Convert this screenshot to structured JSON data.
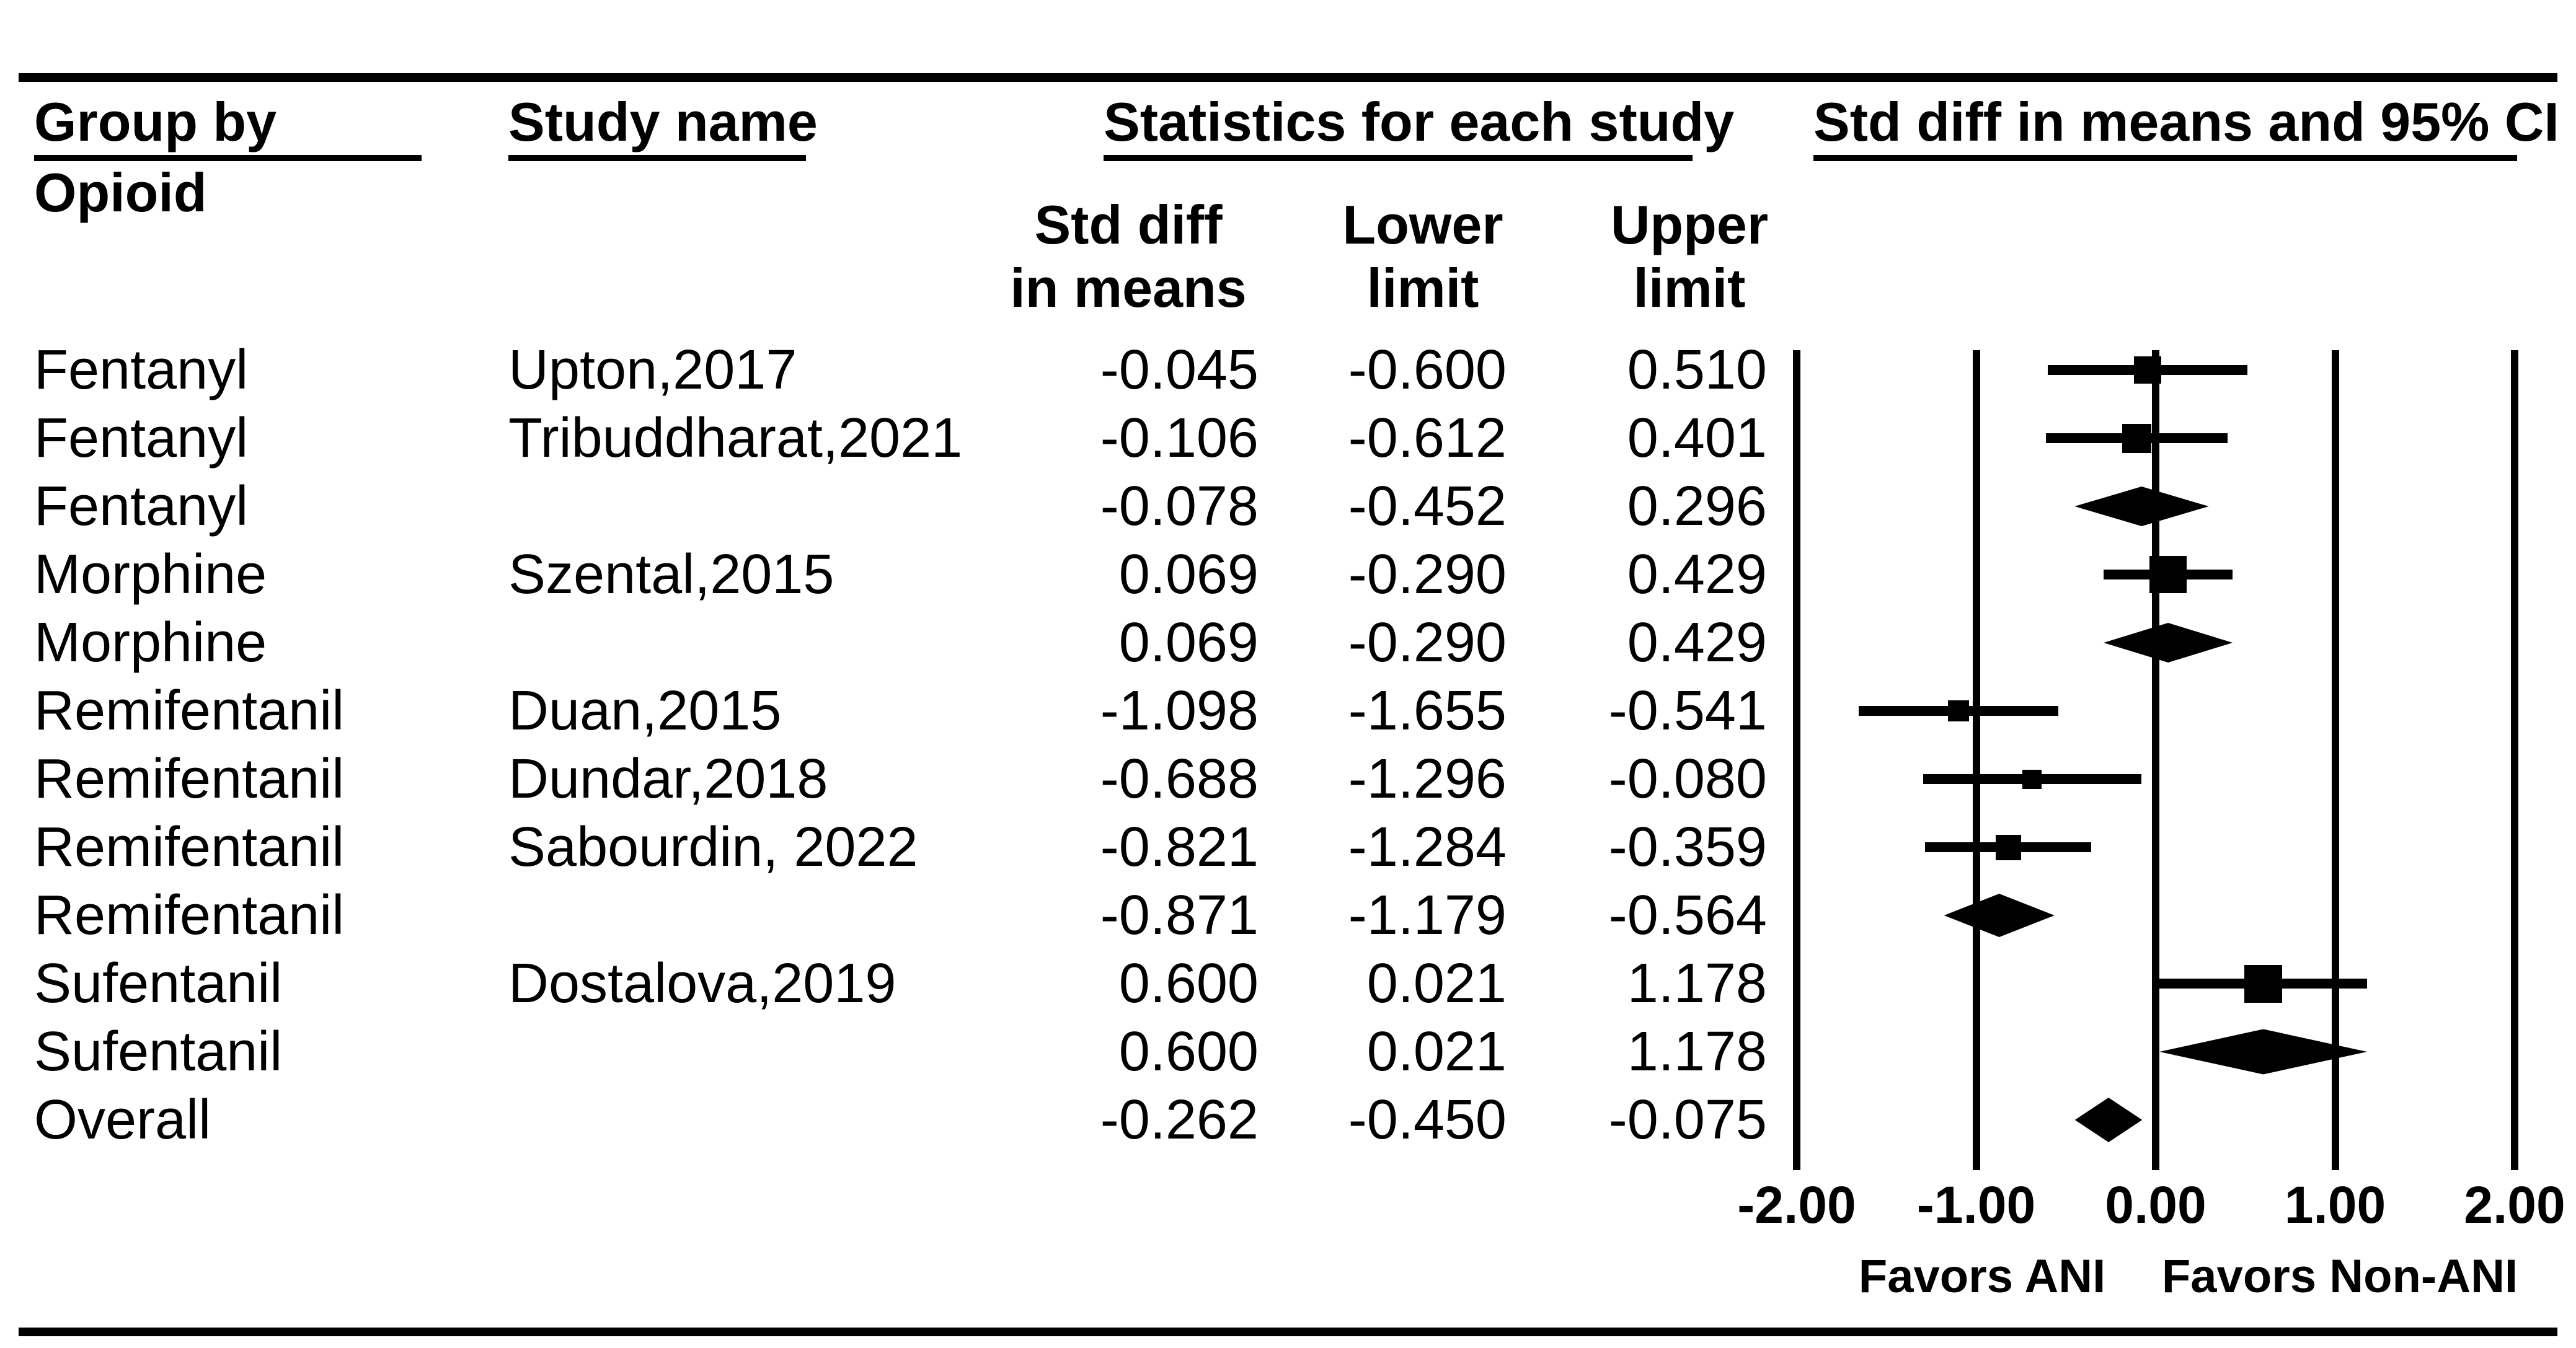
{
  "header": {
    "group_by_label": "Group by",
    "group_by_sub": "Opioid",
    "study_name_label": "Study name",
    "stats_label": "Statistics for each study",
    "plot_label": "Std diff in means and 95% CI",
    "col_std": {
      "line1": "Std diff",
      "line2": "in means"
    },
    "col_lower": {
      "line1": "Lower",
      "line2": "limit"
    },
    "col_upper": {
      "line1": "Upper",
      "line2": "limit"
    }
  },
  "chart_data": {
    "type": "forest",
    "title": "Std diff in means and 95% CI",
    "x_axis": {
      "range": [
        -2,
        2
      ],
      "tick_values": [
        -2,
        -1,
        0,
        1,
        2
      ],
      "tick_labels": [
        "-2.00",
        "-1.00",
        "0.00",
        "1.00",
        "2.00"
      ],
      "gridlines": true
    },
    "annotations": {
      "favors_left": "Favors ANI",
      "favors_right": "Favors Non-ANI"
    },
    "rows": [
      {
        "group": "Fentanyl",
        "study": "Upton,2017",
        "std_diff": -0.045,
        "lower": -0.6,
        "upper": 0.51,
        "std_txt": "-0.045",
        "lo_txt": "-0.600",
        "up_txt": "0.510",
        "marker": "square",
        "size": 44
      },
      {
        "group": "Fentanyl",
        "study": "Tribuddharat,2021",
        "std_diff": -0.106,
        "lower": -0.612,
        "upper": 0.401,
        "std_txt": "-0.106",
        "lo_txt": "-0.612",
        "up_txt": "0.401",
        "marker": "square",
        "size": 47
      },
      {
        "group": "Fentanyl",
        "study": "",
        "std_diff": -0.078,
        "lower": -0.452,
        "upper": 0.296,
        "std_txt": "-0.078",
        "lo_txt": "-0.452",
        "up_txt": "0.296",
        "marker": "diamond",
        "size": 64
      },
      {
        "group": "Morphine",
        "study": "Szental,2015",
        "std_diff": 0.069,
        "lower": -0.29,
        "upper": 0.429,
        "std_txt": "0.069",
        "lo_txt": "-0.290",
        "up_txt": "0.429",
        "marker": "square",
        "size": 60
      },
      {
        "group": "Morphine",
        "study": "",
        "std_diff": 0.069,
        "lower": -0.29,
        "upper": 0.429,
        "std_txt": "0.069",
        "lo_txt": "-0.290",
        "up_txt": "0.429",
        "marker": "diamond",
        "size": 64
      },
      {
        "group": "Remifentanil",
        "study": "Duan,2015",
        "std_diff": -1.098,
        "lower": -1.655,
        "upper": -0.541,
        "std_txt": "-1.098",
        "lo_txt": "-1.655",
        "up_txt": "-0.541",
        "marker": "square",
        "size": 34
      },
      {
        "group": "Remifentanil",
        "study": "Dundar,2018",
        "std_diff": -0.688,
        "lower": -1.296,
        "upper": -0.08,
        "std_txt": "-0.688",
        "lo_txt": "-1.296",
        "up_txt": "-0.080",
        "marker": "square",
        "size": 31
      },
      {
        "group": "Remifentanil",
        "study": "Sabourdin, 2022",
        "std_diff": -0.821,
        "lower": -1.284,
        "upper": -0.359,
        "std_txt": "-0.821",
        "lo_txt": "-1.284",
        "up_txt": "-0.359",
        "marker": "square",
        "size": 41
      },
      {
        "group": "Remifentanil",
        "study": "",
        "std_diff": -0.871,
        "lower": -1.179,
        "upper": -0.564,
        "std_txt": "-0.871",
        "lo_txt": "-1.179",
        "up_txt": "-0.564",
        "marker": "diamond",
        "size": 70
      },
      {
        "group": "Sufentanil",
        "study": "Dostalova,2019",
        "std_diff": 0.6,
        "lower": 0.021,
        "upper": 1.178,
        "std_txt": "0.600",
        "lo_txt": "0.021",
        "up_txt": "1.178",
        "marker": "square",
        "size": 61
      },
      {
        "group": "Sufentanil",
        "study": "",
        "std_diff": 0.6,
        "lower": 0.021,
        "upper": 1.178,
        "std_txt": "0.600",
        "lo_txt": "0.021",
        "up_txt": "1.178",
        "marker": "diamond",
        "size": 73
      },
      {
        "group": "Overall",
        "study": "",
        "std_diff": -0.262,
        "lower": -0.45,
        "upper": -0.075,
        "std_txt": "-0.262",
        "lo_txt": "-0.450",
        "up_txt": "-0.075",
        "marker": "diamond",
        "size": 72
      }
    ]
  }
}
